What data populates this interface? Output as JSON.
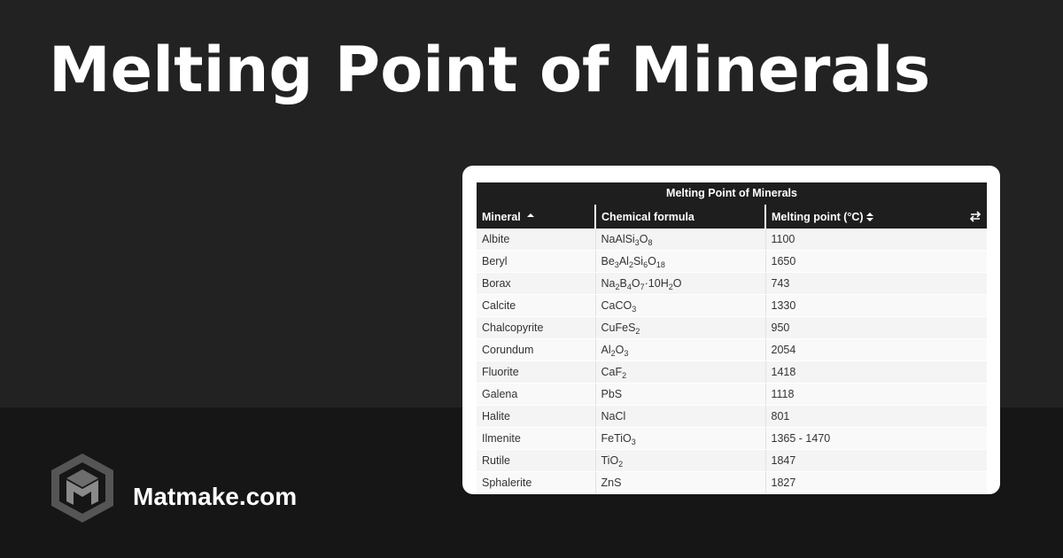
{
  "header": {
    "title": "Melting Point of Minerals"
  },
  "table": {
    "caption": "Melting Point of Minerals",
    "columns": [
      "Mineral",
      "Chemical formula",
      "Melting point (°C)"
    ],
    "rows": [
      [
        "Albite",
        "NaAlSi3O8",
        1100
      ],
      [
        "Beryl",
        "Be3Al2Si6O18",
        1650
      ],
      [
        "Borax",
        "Na2B4O7·10H2O",
        743
      ],
      [
        "Calcite",
        "CaCO3",
        1330
      ],
      [
        "Chalcopyrite",
        "CuFeS2",
        950
      ],
      [
        "Corundum",
        "Al2O3",
        2054
      ],
      [
        "Fluorite",
        "CaF2",
        1418
      ],
      [
        "Galena",
        "PbS",
        1118
      ],
      [
        "Halite",
        "NaCl",
        801
      ],
      [
        "Ilmenite",
        "FeTiO3",
        "1365 - 1470"
      ],
      [
        "Rutile",
        "TiO2",
        1847
      ],
      [
        "Sphalerite",
        "ZnS",
        1827
      ]
    ]
  },
  "footer": {
    "brand": "Matmake.com"
  }
}
